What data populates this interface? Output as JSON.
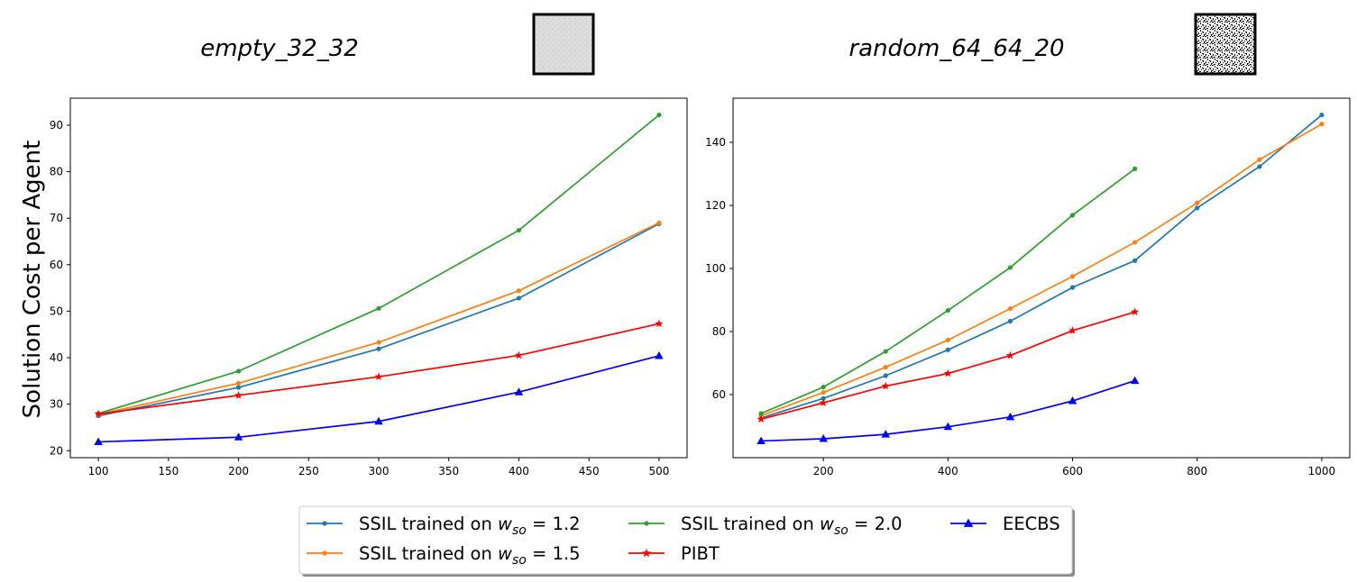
{
  "shared": {
    "ylabel": "Solution Cost per Agent"
  },
  "legend": [
    {
      "series": "SSIL trained on w_so = 1.2",
      "prefix": "SSIL trained on ",
      "var": "w",
      "sub": "so",
      "suffix": " = 1.2",
      "color": "#1f77b4",
      "marker": "dot"
    },
    {
      "series": "SSIL trained on w_so = 1.5",
      "prefix": "SSIL trained on ",
      "var": "w",
      "sub": "so",
      "suffix": " = 1.5",
      "color": "#ff7f0e",
      "marker": "dot"
    },
    {
      "series": "SSIL trained on w_so = 2.0",
      "prefix": "SSIL trained on ",
      "var": "w",
      "sub": "so",
      "suffix": " = 2.0",
      "color": "#2ca02c",
      "marker": "dot"
    },
    {
      "series": "PIBT",
      "prefix": "PIBT",
      "var": "",
      "sub": "",
      "suffix": "",
      "color": "#ff0000",
      "marker": "star"
    },
    {
      "series": "EECBS",
      "prefix": "EECBS",
      "var": "",
      "sub": "",
      "suffix": "",
      "color": "#0000ff",
      "marker": "triangle"
    }
  ],
  "chart_data": [
    {
      "type": "line",
      "title": "empty_32_32",
      "xlabel": "",
      "ylabel": "Solution Cost per Agent",
      "xlim": [
        80,
        520
      ],
      "ylim": [
        18.5,
        95.8
      ],
      "xticks": [
        100,
        150,
        200,
        250,
        300,
        350,
        400,
        450,
        500
      ],
      "yticks": [
        20,
        30,
        40,
        50,
        60,
        70,
        80,
        90
      ],
      "map_style": "empty",
      "series": [
        {
          "name": "SSIL trained on w_so = 1.2",
          "color": "#1f77b4",
          "marker": "dot",
          "x": [
            100,
            200,
            300,
            400,
            500
          ],
          "y": [
            27.5,
            33.6,
            41.9,
            52.8,
            68.8
          ]
        },
        {
          "name": "SSIL trained on w_so = 1.5",
          "color": "#ff7f0e",
          "marker": "dot",
          "x": [
            100,
            200,
            300,
            400,
            500
          ],
          "y": [
            27.8,
            34.5,
            43.3,
            54.4,
            69.0
          ]
        },
        {
          "name": "SSIL trained on w_so = 2.0",
          "color": "#2ca02c",
          "marker": "dot",
          "x": [
            100,
            200,
            300,
            400,
            500
          ],
          "y": [
            28.0,
            37.1,
            50.6,
            67.4,
            92.2
          ]
        },
        {
          "name": "PIBT",
          "color": "#ff0000",
          "marker": "star",
          "x": [
            100,
            200,
            300,
            400,
            500
          ],
          "y": [
            27.9,
            31.9,
            35.9,
            40.5,
            47.3
          ]
        },
        {
          "name": "EECBS",
          "color": "#0000ff",
          "marker": "triangle",
          "x": [
            100,
            200,
            300,
            400,
            500
          ],
          "y": [
            21.9,
            22.9,
            26.3,
            32.6,
            40.4
          ]
        }
      ]
    },
    {
      "type": "line",
      "title": "random_64_64_20",
      "xlabel": "",
      "ylabel": "",
      "xlim": [
        55,
        1045
      ],
      "ylim": [
        40.0,
        154.0
      ],
      "xticks": [
        200,
        400,
        600,
        800,
        1000
      ],
      "yticks": [
        60,
        80,
        100,
        120,
        140
      ],
      "map_style": "random",
      "series": [
        {
          "name": "SSIL trained on w_so = 1.2",
          "color": "#1f77b4",
          "marker": "dot",
          "x": [
            100,
            200,
            300,
            400,
            500,
            600,
            700,
            800,
            900,
            1000
          ],
          "y": [
            52.6,
            58.8,
            66.0,
            74.2,
            83.3,
            94.0,
            102.5,
            119.2,
            132.3,
            148.7
          ]
        },
        {
          "name": "SSIL trained on w_so = 1.5",
          "color": "#ff7f0e",
          "marker": "dot",
          "x": [
            100,
            200,
            300,
            400,
            500,
            600,
            700,
            800,
            900,
            1000
          ],
          "y": [
            53.3,
            60.7,
            68.7,
            77.3,
            87.3,
            97.5,
            108.3,
            120.8,
            134.5,
            145.8
          ]
        },
        {
          "name": "SSIL trained on w_so = 2.0",
          "color": "#2ca02c",
          "marker": "dot",
          "x": [
            100,
            200,
            300,
            400,
            500,
            600,
            700
          ],
          "y": [
            54.0,
            62.4,
            73.7,
            86.7,
            100.3,
            116.9,
            131.6
          ]
        },
        {
          "name": "PIBT",
          "color": "#ff0000",
          "marker": "star",
          "x": [
            100,
            200,
            300,
            400,
            500,
            600,
            700
          ],
          "y": [
            52.2,
            57.4,
            62.7,
            66.7,
            72.4,
            80.3,
            86.2
          ]
        },
        {
          "name": "EECBS",
          "color": "#0000ff",
          "marker": "triangle",
          "x": [
            100,
            200,
            300,
            400,
            500,
            600,
            700
          ],
          "y": [
            45.3,
            46.0,
            47.4,
            49.8,
            52.9,
            58.0,
            64.4
          ]
        }
      ]
    }
  ]
}
